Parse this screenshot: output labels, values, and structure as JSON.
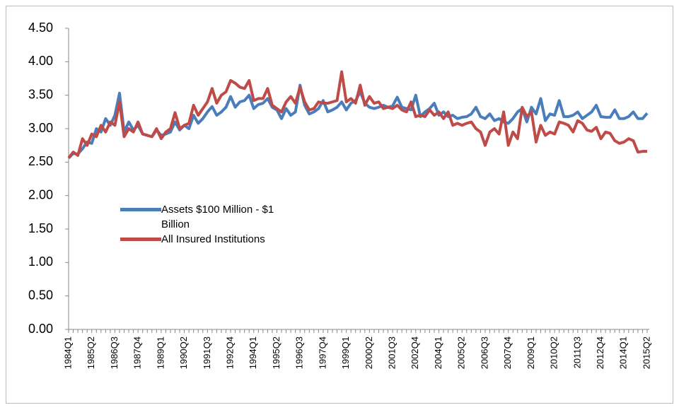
{
  "chart_data": {
    "type": "line",
    "categories": [
      "1984Q1",
      null,
      null,
      null,
      null,
      "1985Q2",
      null,
      null,
      null,
      null,
      "1986Q3",
      null,
      null,
      null,
      null,
      "1987Q4",
      null,
      null,
      null,
      null,
      "1989Q1",
      null,
      null,
      null,
      null,
      "1990Q2",
      null,
      null,
      null,
      null,
      "1991Q3",
      null,
      null,
      null,
      null,
      "1992Q4",
      null,
      null,
      null,
      null,
      "1994Q1",
      null,
      null,
      null,
      null,
      "1995Q2",
      null,
      null,
      null,
      null,
      "1996Q3",
      null,
      null,
      null,
      null,
      "1997Q4",
      null,
      null,
      null,
      null,
      "1999Q1",
      null,
      null,
      null,
      null,
      "2000Q2",
      null,
      null,
      null,
      null,
      "2001Q3",
      null,
      null,
      null,
      null,
      "2002Q4",
      null,
      null,
      null,
      null,
      "2004Q1",
      null,
      null,
      null,
      null,
      "2005Q2",
      null,
      null,
      null,
      null,
      "2006Q3",
      null,
      null,
      null,
      null,
      "2007Q4",
      null,
      null,
      null,
      null,
      "2009Q1",
      null,
      null,
      null,
      null,
      "2010Q2",
      null,
      null,
      null,
      null,
      "2011Q3",
      null,
      null,
      null,
      null,
      "2012Q4",
      null,
      null,
      null,
      null,
      "2014Q1",
      null,
      null,
      null,
      null,
      "2015Q2"
    ],
    "series": [
      {
        "name": "Assets $100 Million - $1 Billion",
        "color": "#4a7ebb",
        "values": [
          2.56,
          2.63,
          2.62,
          2.7,
          2.8,
          2.78,
          3.0,
          2.95,
          3.15,
          3.05,
          3.2,
          3.53,
          2.95,
          3.1,
          2.98,
          3.05,
          2.92,
          2.9,
          2.88,
          2.98,
          2.9,
          2.92,
          2.95,
          3.1,
          2.98,
          3.05,
          3.0,
          3.2,
          3.08,
          3.15,
          3.25,
          3.33,
          3.2,
          3.25,
          3.32,
          3.48,
          3.32,
          3.4,
          3.42,
          3.5,
          3.3,
          3.36,
          3.38,
          3.45,
          3.32,
          3.28,
          3.15,
          3.3,
          3.2,
          3.25,
          3.65,
          3.35,
          3.22,
          3.25,
          3.3,
          3.42,
          3.25,
          3.28,
          3.32,
          3.4,
          3.28,
          3.38,
          3.42,
          3.55,
          3.38,
          3.32,
          3.3,
          3.32,
          3.35,
          3.32,
          3.34,
          3.47,
          3.32,
          3.3,
          3.28,
          3.5,
          3.18,
          3.25,
          3.3,
          3.38,
          3.2,
          3.25,
          3.18,
          3.2,
          3.15,
          3.17,
          3.18,
          3.22,
          3.32,
          3.18,
          3.15,
          3.22,
          3.12,
          3.15,
          3.1,
          3.08,
          3.15,
          3.25,
          3.3,
          3.1,
          3.32,
          3.22,
          3.45,
          3.12,
          3.22,
          3.2,
          3.42,
          3.18,
          3.18,
          3.2,
          3.25,
          3.15,
          3.2,
          3.25,
          3.35,
          3.18,
          3.17,
          3.17,
          3.28,
          3.15,
          3.15,
          3.18,
          3.25,
          3.15,
          3.15,
          3.23
        ]
      },
      {
        "name": "All Insured Institutions",
        "color": "#be4b48",
        "values": [
          2.56,
          2.65,
          2.6,
          2.85,
          2.75,
          2.92,
          2.88,
          3.05,
          2.95,
          3.1,
          3.05,
          3.4,
          2.88,
          3.0,
          2.95,
          3.1,
          2.92,
          2.9,
          2.88,
          3.0,
          2.85,
          2.95,
          3.0,
          3.24,
          3.0,
          3.05,
          3.08,
          3.35,
          3.2,
          3.3,
          3.4,
          3.6,
          3.38,
          3.5,
          3.55,
          3.72,
          3.68,
          3.62,
          3.6,
          3.72,
          3.42,
          3.45,
          3.45,
          3.6,
          3.35,
          3.3,
          3.25,
          3.4,
          3.48,
          3.38,
          3.62,
          3.4,
          3.28,
          3.3,
          3.4,
          3.38,
          3.38,
          3.4,
          3.42,
          3.85,
          3.4,
          3.45,
          3.38,
          3.65,
          3.35,
          3.48,
          3.38,
          3.4,
          3.3,
          3.32,
          3.3,
          3.35,
          3.28,
          3.25,
          3.4,
          3.18,
          3.2,
          3.18,
          3.28,
          3.2,
          3.25,
          3.15,
          3.25,
          3.05,
          3.08,
          3.05,
          3.08,
          3.1,
          3.0,
          2.95,
          2.75,
          2.95,
          3.0,
          2.92,
          3.25,
          2.75,
          2.95,
          2.85,
          3.32,
          3.18,
          3.25,
          2.8,
          3.05,
          2.9,
          2.95,
          2.92,
          3.1,
          3.08,
          3.05,
          2.95,
          3.12,
          3.08,
          2.98,
          2.96,
          3.02,
          2.85,
          2.95,
          2.93,
          2.82,
          2.78,
          2.8,
          2.85,
          2.82,
          2.65,
          2.66,
          2.66
        ]
      }
    ],
    "ylim": [
      0,
      4.5
    ],
    "yticks": [
      {
        "value": 0,
        "label": "0.00"
      },
      {
        "value": 0.5,
        "label": "0.50"
      },
      {
        "value": 1,
        "label": "1.00"
      },
      {
        "value": 1.5,
        "label": "1.50"
      },
      {
        "value": 2,
        "label": "2.00"
      },
      {
        "value": 2.5,
        "label": "2.50"
      },
      {
        "value": 3,
        "label": "3.00"
      },
      {
        "value": 3.5,
        "label": "3.50"
      },
      {
        "value": 4,
        "label": "4.00"
      },
      {
        "value": 4.5,
        "label": "4.50"
      }
    ],
    "grid": false,
    "legend": "center-left"
  }
}
